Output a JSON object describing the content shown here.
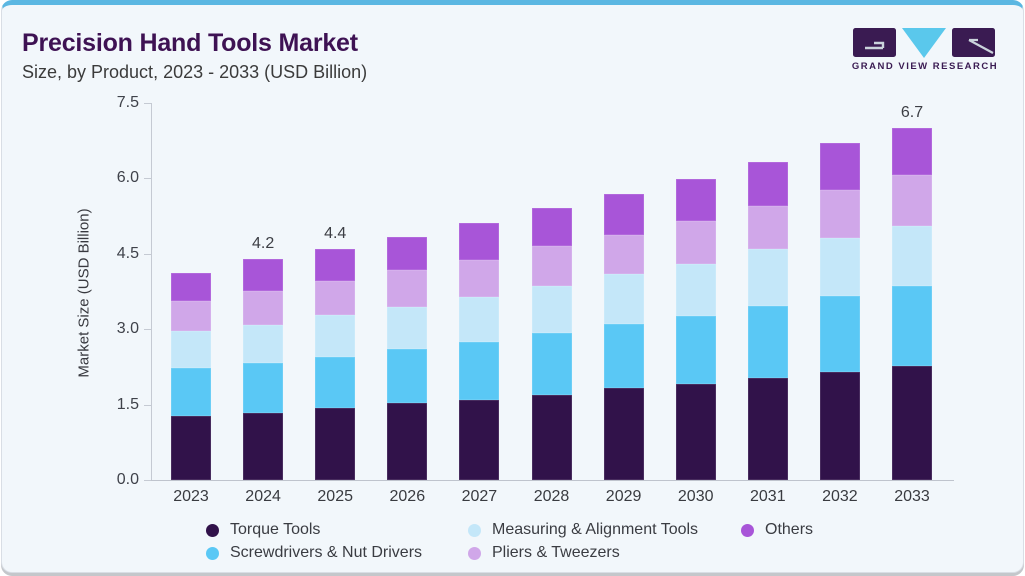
{
  "header": {
    "title": "Precision Hand Tools Market",
    "subtitle": "Size, by Product, 2023 - 2033 (USD Billion)"
  },
  "brand": {
    "name": "GRAND VIEW RESEARCH"
  },
  "chart_data": {
    "type": "bar",
    "stacked": true,
    "title": "Precision Hand Tools Market Size, by Product, 2023 - 2033 (USD Billion)",
    "categories": [
      "2023",
      "2024",
      "2025",
      "2026",
      "2027",
      "2028",
      "2029",
      "2030",
      "2031",
      "2032",
      "2033"
    ],
    "series": [
      {
        "key": "torque-tools",
        "name": "Torque Tools",
        "color": "#31124a",
        "values": [
          1.22,
          1.28,
          1.37,
          1.47,
          1.53,
          1.61,
          1.75,
          1.83,
          1.93,
          2.06,
          2.16
        ]
      },
      {
        "key": "screwdrivers-nut-drivers",
        "name": "Screwdrivers & Nut Drivers",
        "color": "#5ac8f5",
        "values": [
          0.9,
          0.94,
          0.97,
          1.02,
          1.09,
          1.19,
          1.21,
          1.28,
          1.37,
          1.44,
          1.52
        ]
      },
      {
        "key": "measuring-alignment-tools",
        "name": "Measuring & Alignment Tools",
        "color": "#c4e7f9",
        "values": [
          0.72,
          0.73,
          0.8,
          0.79,
          0.85,
          0.89,
          0.95,
          1.0,
          1.09,
          1.1,
          1.14
        ]
      },
      {
        "key": "pliers-tweezers",
        "name": "Pliers & Tweezers",
        "color": "#d0a7e9",
        "values": [
          0.56,
          0.64,
          0.64,
          0.71,
          0.71,
          0.75,
          0.75,
          0.82,
          0.82,
          0.91,
          0.98
        ]
      },
      {
        "key": "others",
        "name": "Others",
        "color": "#a855d8",
        "values": [
          0.54,
          0.61,
          0.62,
          0.63,
          0.71,
          0.73,
          0.78,
          0.79,
          0.84,
          0.89,
          0.9
        ]
      }
    ],
    "totals": [
      3.94,
      4.2,
      4.4,
      4.62,
      4.89,
      5.17,
      5.44,
      5.72,
      6.05,
      6.4,
      6.7
    ],
    "bar_total_labels": [
      {
        "category": "2024",
        "label": "4.2"
      },
      {
        "category": "2025",
        "label": "4.4"
      },
      {
        "category": "2033",
        "label": "6.7"
      }
    ],
    "xlabel": "",
    "ylabel": "Market Size (USD Billion)",
    "yticks": [
      "0.0",
      "1.5",
      "3.0",
      "4.5",
      "6.0",
      "7.5"
    ],
    "ylim": [
      0,
      7.5
    ],
    "grid": false,
    "legend_position": "bottom"
  },
  "colors": {
    "accent_top_bar": "#5bb7e2",
    "card_background": "#f2f7fb",
    "title_text": "#3e1253",
    "subtitle_text": "#3b3b3b",
    "axis_line": "#c5cad3",
    "axis_text": "#3f424a",
    "brand_purple": "#3a1b52",
    "brand_blue": "#5ac8ec"
  }
}
